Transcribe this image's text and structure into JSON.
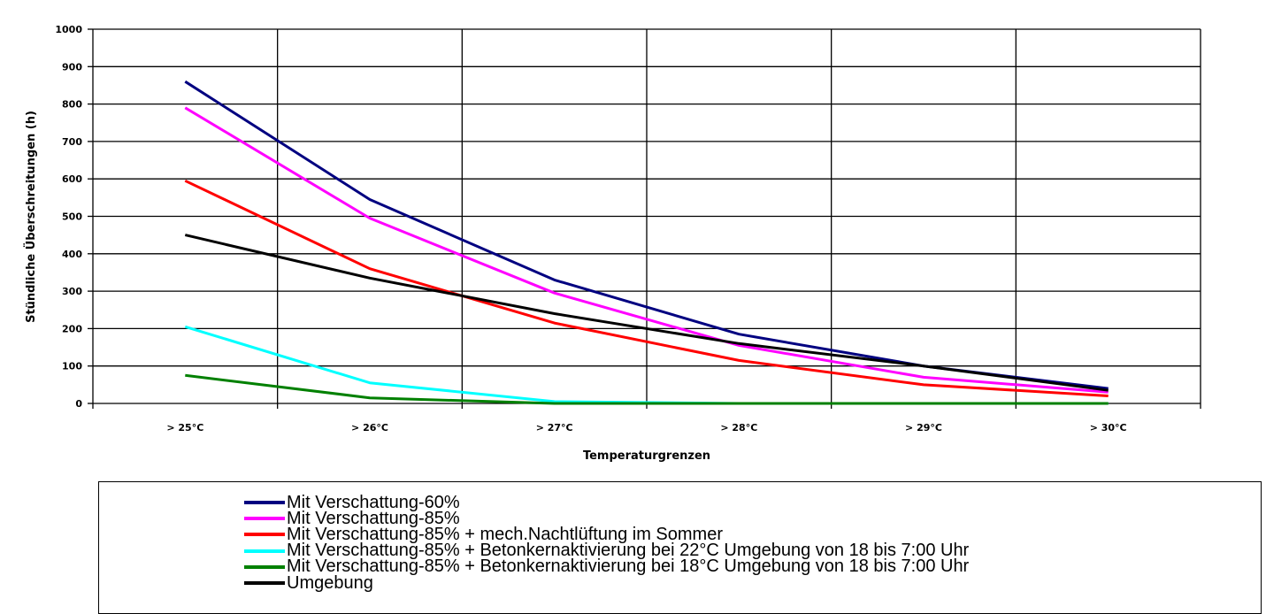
{
  "chart_data": {
    "type": "line",
    "xlabel": "Temperaturgrenzen",
    "ylabel": "Stündliche Überschreitungen (h)",
    "ylim": [
      0,
      1000
    ],
    "yticks": [
      "0",
      "100",
      "200",
      "300",
      "400",
      "500",
      "600",
      "700",
      "800",
      "900",
      "1000"
    ],
    "categories": [
      "> 25°C",
      "> 26°C",
      "> 27°C",
      "> 28°C",
      "> 29°C",
      "> 30°C"
    ],
    "grid": true,
    "legend_position": "bottom",
    "series": [
      {
        "name": "Mit Verschattung-60%",
        "color": "#000080",
        "values": [
          860,
          545,
          330,
          185,
          100,
          40
        ]
      },
      {
        "name": "Mit Verschattung-85%",
        "color": "#ff00ff",
        "values": [
          790,
          495,
          295,
          155,
          70,
          30
        ]
      },
      {
        "name": "Mit Verschattung-85% + mech.Nachtlüftung im Sommer",
        "color": "#ff0000",
        "values": [
          595,
          360,
          215,
          115,
          50,
          20
        ]
      },
      {
        "name": "Mit Verschattung-85% + Betonkernaktivierung bei 22°C Umgebung von 18 bis 7:00 Uhr",
        "color": "#00ffff",
        "values": [
          205,
          55,
          5,
          0,
          0,
          0
        ]
      },
      {
        "name": "Mit Verschattung-85% + Betonkernaktivierung bei 18°C Umgebung von 18 bis 7:00 Uhr",
        "color": "#008000",
        "values": [
          75,
          15,
          0,
          0,
          0,
          0
        ]
      },
      {
        "name": "Umgebung",
        "color": "#000000",
        "values": [
          450,
          335,
          240,
          160,
          100,
          35
        ]
      }
    ]
  }
}
